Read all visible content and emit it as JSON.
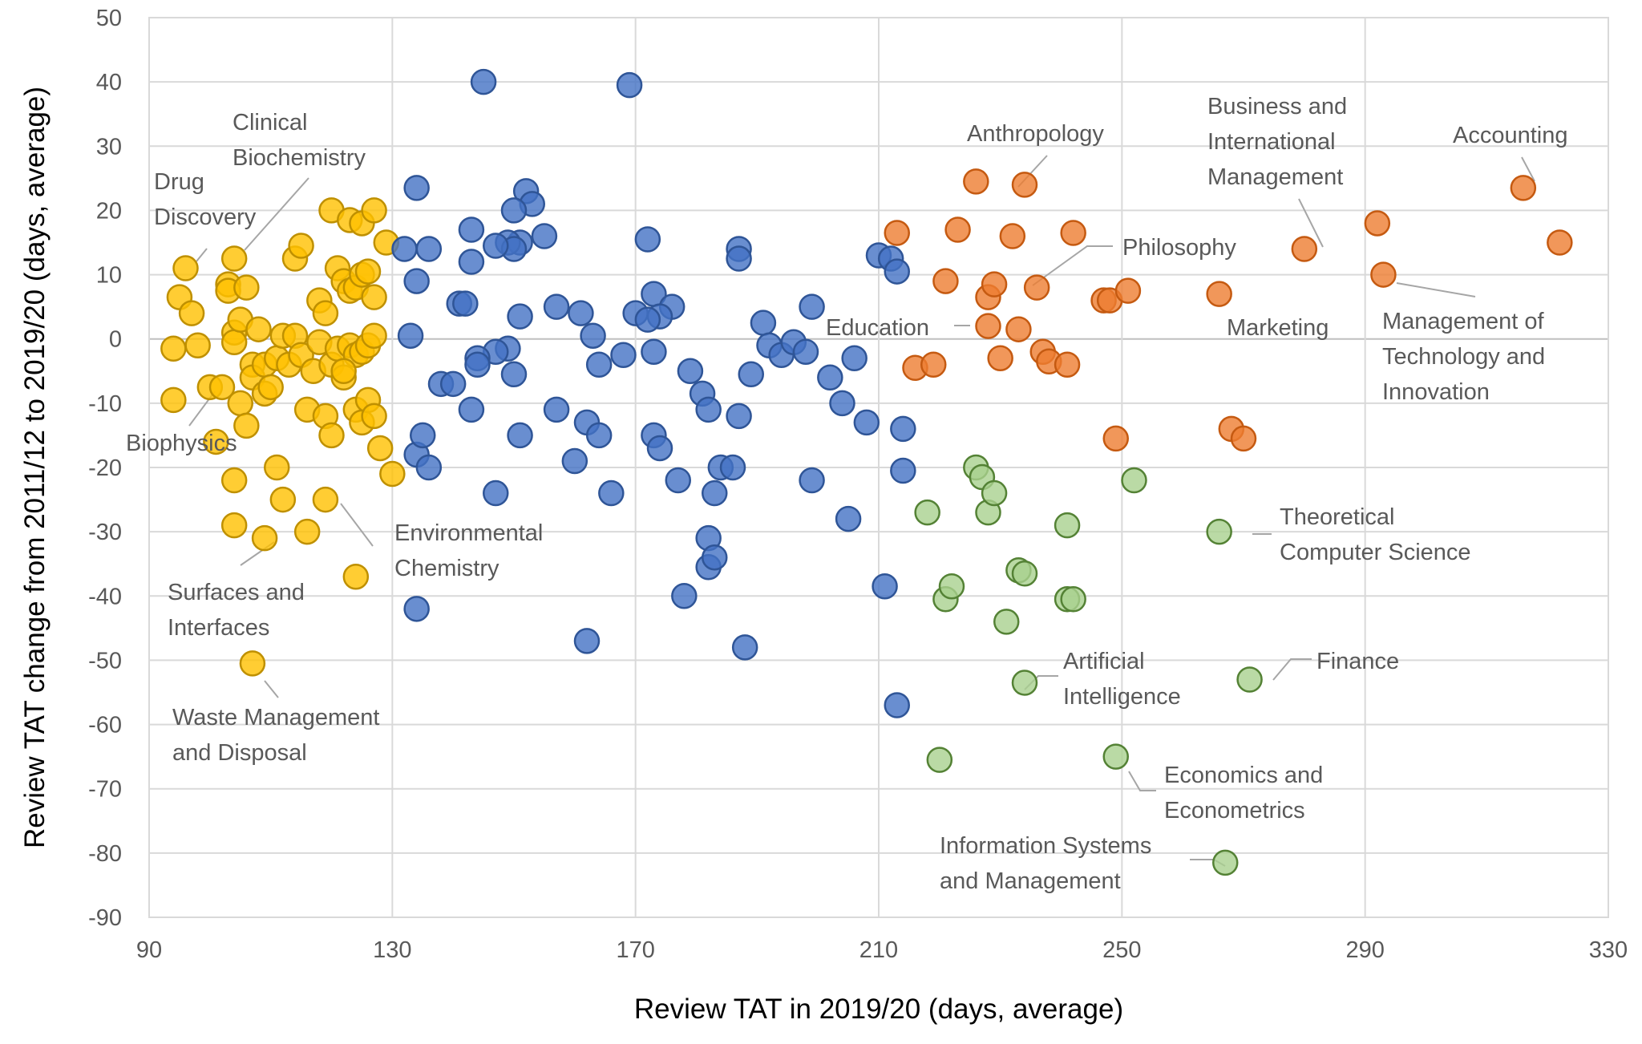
{
  "chart_data": {
    "type": "scatter",
    "xlabel": "Review TAT in 2019/20 (days, average)",
    "ylabel": "Review TAT change from 2011/12 to 2019/20 (days, average)",
    "xlim": [
      90,
      330
    ],
    "ylim": [
      -90,
      50
    ],
    "xticks": [
      90,
      130,
      170,
      210,
      250,
      290,
      330
    ],
    "yticks": [
      50,
      40,
      30,
      20,
      10,
      0,
      -10,
      -20,
      -30,
      -40,
      -50,
      -60,
      -70,
      -80,
      -90
    ],
    "grid": true,
    "legend": "none",
    "series": [
      {
        "color": "#FFC000",
        "stroke": "#BF9000",
        "points": [
          [
            94,
            -1.5
          ],
          [
            95,
            6.5
          ],
          [
            96,
            11
          ],
          [
            97,
            4
          ],
          [
            98,
            -1
          ],
          [
            100,
            -7.5
          ],
          [
            101,
            -16
          ],
          [
            102,
            -7.5
          ],
          [
            103,
            8.5
          ],
          [
            103,
            7.5
          ],
          [
            104,
            1
          ],
          [
            104,
            -0.5
          ],
          [
            105,
            3
          ],
          [
            105,
            -10
          ],
          [
            106,
            -13.5
          ],
          [
            107,
            -4
          ],
          [
            107,
            -6
          ],
          [
            108,
            1.5
          ],
          [
            109,
            -4
          ],
          [
            109,
            -8.5
          ],
          [
            110,
            -7.5
          ],
          [
            111,
            -3
          ],
          [
            112,
            0.5
          ],
          [
            113,
            -4
          ],
          [
            114,
            0.5
          ],
          [
            115,
            -2.5
          ],
          [
            117,
            -5
          ],
          [
            118,
            -0.5
          ],
          [
            120,
            -4
          ],
          [
            121,
            -1.5
          ],
          [
            122,
            -6
          ],
          [
            123,
            -1
          ],
          [
            124,
            -2.5
          ],
          [
            125,
            -2
          ],
          [
            126,
            -1
          ],
          [
            127,
            0.5
          ],
          [
            116,
            -11
          ],
          [
            119,
            -12
          ],
          [
            120,
            -15
          ],
          [
            124,
            -11
          ],
          [
            125,
            -13
          ],
          [
            126,
            -9.5
          ],
          [
            127,
            -12
          ],
          [
            128,
            -17
          ],
          [
            130,
            -21
          ],
          [
            111,
            -20
          ],
          [
            112,
            -25
          ],
          [
            104,
            -22
          ],
          [
            104,
            -29
          ],
          [
            119,
            -25
          ],
          [
            124,
            -37
          ],
          [
            116,
            -30
          ],
          [
            109,
            -31
          ],
          [
            107,
            -50.5
          ],
          [
            104,
            12.5
          ],
          [
            106,
            8
          ],
          [
            114,
            12.5
          ],
          [
            115,
            14.5
          ],
          [
            118,
            6
          ],
          [
            119,
            4
          ],
          [
            121,
            11
          ],
          [
            122,
            9
          ],
          [
            123,
            7.5
          ],
          [
            124,
            8
          ],
          [
            125,
            10
          ],
          [
            126,
            10.5
          ],
          [
            127,
            6.5
          ],
          [
            129,
            15
          ],
          [
            120,
            20
          ],
          [
            123,
            18.5
          ],
          [
            125,
            18
          ],
          [
            127,
            20
          ],
          [
            122,
            -5
          ],
          [
            94,
            -9.5
          ]
        ]
      },
      {
        "color": "#4472C4",
        "stroke": "#2F5597",
        "points": [
          [
            145,
            40
          ],
          [
            169,
            39.5
          ],
          [
            134,
            23.5
          ],
          [
            152,
            23
          ],
          [
            153,
            21
          ],
          [
            150,
            20
          ],
          [
            155,
            16
          ],
          [
            151,
            15
          ],
          [
            149,
            15
          ],
          [
            150,
            14
          ],
          [
            147,
            14.5
          ],
          [
            143,
            17
          ],
          [
            132,
            14
          ],
          [
            136,
            14
          ],
          [
            143,
            12
          ],
          [
            134,
            9
          ],
          [
            141,
            5.5
          ],
          [
            142,
            5.5
          ],
          [
            151,
            3.5
          ],
          [
            157,
            5
          ],
          [
            161,
            4
          ],
          [
            170,
            4
          ],
          [
            173,
            7
          ],
          [
            176,
            5
          ],
          [
            174,
            3.5
          ],
          [
            172,
            3
          ],
          [
            163,
            0.5
          ],
          [
            133,
            0.5
          ],
          [
            164,
            -4
          ],
          [
            168,
            -2.5
          ],
          [
            173,
            -2
          ],
          [
            189,
            -5.5
          ],
          [
            187,
            14
          ],
          [
            187,
            12.5
          ],
          [
            172,
            15.5
          ],
          [
            149,
            -1.5
          ],
          [
            147,
            -2
          ],
          [
            144,
            -3
          ],
          [
            144,
            -4
          ],
          [
            150,
            -5.5
          ],
          [
            138,
            -7
          ],
          [
            140,
            -7
          ],
          [
            143,
            -11
          ],
          [
            147,
            -24
          ],
          [
            157,
            -11
          ],
          [
            160,
            -19
          ],
          [
            162,
            -13
          ],
          [
            164,
            -15
          ],
          [
            166,
            -24
          ],
          [
            173,
            -15
          ],
          [
            174,
            -17
          ],
          [
            177,
            -22
          ],
          [
            179,
            -5
          ],
          [
            181,
            -8.5
          ],
          [
            182,
            -11
          ],
          [
            183,
            -24
          ],
          [
            184,
            -20
          ],
          [
            186,
            -20
          ],
          [
            187,
            -12
          ],
          [
            182,
            -31
          ],
          [
            182,
            -35.5
          ],
          [
            183,
            -34
          ],
          [
            178,
            -40
          ],
          [
            162,
            -47
          ],
          [
            188,
            -48
          ],
          [
            134,
            -18
          ],
          [
            135,
            -15
          ],
          [
            136,
            -20
          ],
          [
            134,
            -42
          ],
          [
            151,
            -15
          ],
          [
            191,
            2.5
          ],
          [
            192,
            -1
          ],
          [
            194,
            -2.5
          ],
          [
            196,
            -0.5
          ],
          [
            198,
            -2
          ],
          [
            199,
            5
          ],
          [
            199,
            -22
          ],
          [
            202,
            -6
          ],
          [
            204,
            -10
          ],
          [
            206,
            -3
          ],
          [
            208,
            -13
          ],
          [
            210,
            13
          ],
          [
            212,
            12.5
          ],
          [
            213,
            10.5
          ],
          [
            214,
            -14
          ],
          [
            214,
            -20.5
          ],
          [
            205,
            -28
          ],
          [
            211,
            -38.5
          ],
          [
            213,
            -57
          ]
        ]
      },
      {
        "color": "#ED7D31",
        "stroke": "#C55A11",
        "points": [
          [
            213,
            16.5
          ],
          [
            216,
            -4.5
          ],
          [
            219,
            -4
          ],
          [
            221,
            9
          ],
          [
            223,
            17
          ],
          [
            226,
            24.5
          ],
          [
            228,
            2
          ],
          [
            228,
            6.5
          ],
          [
            229,
            8.5
          ],
          [
            230,
            -3
          ],
          [
            232,
            16
          ],
          [
            233,
            1.5
          ],
          [
            234,
            24
          ],
          [
            236,
            8
          ],
          [
            237,
            -2
          ],
          [
            238,
            -3.5
          ],
          [
            241,
            -4
          ],
          [
            242,
            16.5
          ],
          [
            247,
            6
          ],
          [
            248,
            6
          ],
          [
            249,
            -15.5
          ],
          [
            251,
            7.5
          ],
          [
            266,
            7
          ],
          [
            268,
            -14
          ],
          [
            270,
            -15.5
          ],
          [
            280,
            14
          ],
          [
            292,
            18
          ],
          [
            293,
            10
          ],
          [
            316,
            23.5
          ],
          [
            322,
            15
          ]
        ]
      },
      {
        "color": "#A9D18E",
        "stroke": "#548235",
        "points": [
          [
            218,
            -27
          ],
          [
            220,
            -65.5
          ],
          [
            221,
            -40.5
          ],
          [
            222,
            -38.5
          ],
          [
            226,
            -20
          ],
          [
            227,
            -21.5
          ],
          [
            228,
            -27
          ],
          [
            229,
            -24
          ],
          [
            231,
            -44
          ],
          [
            233,
            -36
          ],
          [
            234,
            -36.5
          ],
          [
            234,
            -53.5
          ],
          [
            241,
            -29
          ],
          [
            241,
            -40.5
          ],
          [
            242,
            -40.5
          ],
          [
            249,
            -65
          ],
          [
            252,
            -22
          ],
          [
            266,
            -30
          ],
          [
            267,
            -81.5
          ],
          [
            271,
            -53
          ]
        ]
      }
    ],
    "annotations": [
      {
        "lines": [
          "Drug",
          "Discovery"
        ],
        "at": [
          96,
          11
        ]
      },
      {
        "lines": [
          "Clinical",
          "Biochemistry"
        ],
        "at": [
          104,
          12.5
        ]
      },
      {
        "lines": [
          "Biophysics"
        ],
        "at": [
          101,
          -7.5
        ]
      },
      {
        "lines": [
          "Environmental",
          "Chemistry"
        ],
        "at": [
          121,
          -25
        ]
      },
      {
        "lines": [
          "Surfaces and",
          "Interfaces"
        ],
        "at": [
          109,
          -31
        ]
      },
      {
        "lines": [
          "Waste Management",
          "and Disposal"
        ],
        "at": [
          107,
          -50.5
        ]
      },
      {
        "lines": [
          "Anthropology"
        ],
        "at": [
          234,
          24
        ]
      },
      {
        "lines": [
          "Philosophy"
        ],
        "at": [
          236,
          8
        ]
      },
      {
        "lines": [
          "Education"
        ],
        "at": [
          228,
          2
        ]
      },
      {
        "lines": [
          "Business and",
          "International",
          "Management"
        ],
        "at": [
          280,
          14
        ]
      },
      {
        "lines": [
          "Accounting"
        ],
        "at": [
          316,
          23.5
        ]
      },
      {
        "lines": [
          "Management of",
          "Technology and",
          "Innovation"
        ],
        "at": [
          293,
          10
        ]
      },
      {
        "lines": [
          "Marketing"
        ],
        "at": [
          266,
          7
        ]
      },
      {
        "lines": [
          "Theoretical",
          "Computer Science"
        ],
        "at": [
          266,
          -30
        ]
      },
      {
        "lines": [
          "Artificial",
          "Intelligence"
        ],
        "at": [
          234,
          -53.5
        ]
      },
      {
        "lines": [
          "Finance"
        ],
        "at": [
          271,
          -53
        ]
      },
      {
        "lines": [
          "Economics and",
          "Econometrics"
        ],
        "at": [
          249,
          -65
        ]
      },
      {
        "lines": [
          "Information Systems",
          "and Management"
        ],
        "at": [
          267,
          -81.5
        ]
      }
    ]
  }
}
